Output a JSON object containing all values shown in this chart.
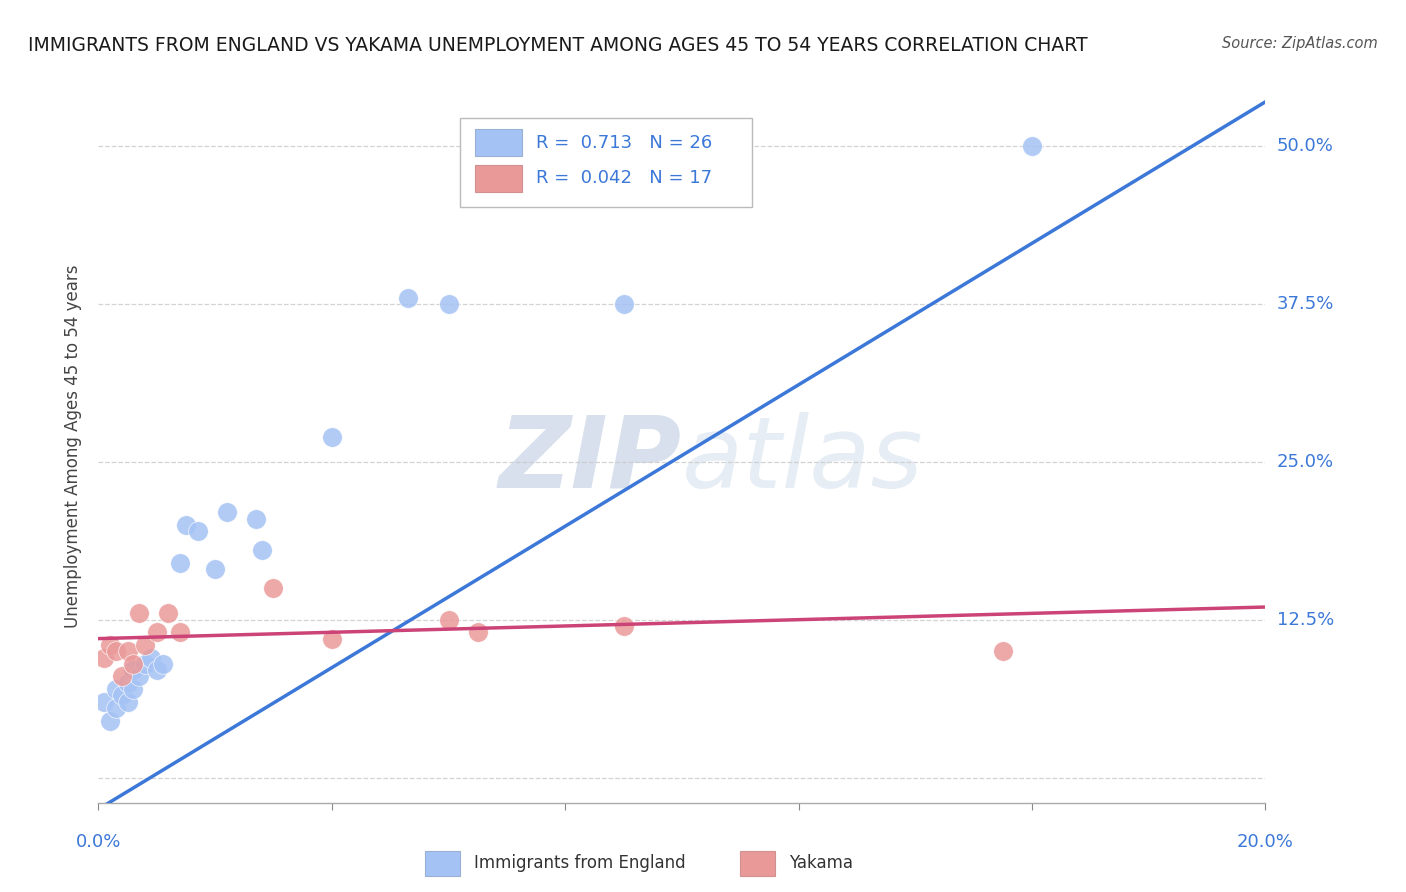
{
  "title": "IMMIGRANTS FROM ENGLAND VS YAKAMA UNEMPLOYMENT AMONG AGES 45 TO 54 YEARS CORRELATION CHART",
  "source": "Source: ZipAtlas.com",
  "ylabel": "Unemployment Among Ages 45 to 54 years",
  "xlim": [
    0.0,
    0.2
  ],
  "ylim": [
    -0.02,
    0.545
  ],
  "ytick_positions": [
    0.0,
    0.125,
    0.25,
    0.375,
    0.5
  ],
  "ytick_labels": [
    "",
    "12.5%",
    "25.0%",
    "37.5%",
    "50.0%"
  ],
  "background_color": "#ffffff",
  "grid_color": "#c8c8c8",
  "watermark": "ZIPatlas",
  "legend_R1": "0.713",
  "legend_N1": "26",
  "legend_R2": "0.042",
  "legend_N2": "17",
  "blue_color": "#a4c2f4",
  "pink_color": "#ea9999",
  "line_blue": "#3c78d8",
  "line_pink": "#cc4477",
  "blue_scatter_x": [
    0.001,
    0.002,
    0.003,
    0.003,
    0.004,
    0.005,
    0.005,
    0.006,
    0.006,
    0.007,
    0.008,
    0.009,
    0.01,
    0.011,
    0.014,
    0.015,
    0.017,
    0.02,
    0.022,
    0.027,
    0.028,
    0.04,
    0.053,
    0.06,
    0.09,
    0.16
  ],
  "blue_scatter_y": [
    0.06,
    0.045,
    0.055,
    0.07,
    0.065,
    0.06,
    0.075,
    0.07,
    0.085,
    0.08,
    0.09,
    0.095,
    0.085,
    0.09,
    0.17,
    0.2,
    0.195,
    0.165,
    0.21,
    0.205,
    0.18,
    0.27,
    0.38,
    0.375,
    0.375,
    0.5
  ],
  "pink_scatter_x": [
    0.001,
    0.002,
    0.003,
    0.004,
    0.005,
    0.006,
    0.007,
    0.008,
    0.01,
    0.012,
    0.014,
    0.03,
    0.04,
    0.06,
    0.065,
    0.09,
    0.155
  ],
  "pink_scatter_y": [
    0.095,
    0.105,
    0.1,
    0.08,
    0.1,
    0.09,
    0.13,
    0.105,
    0.115,
    0.13,
    0.115,
    0.15,
    0.11,
    0.125,
    0.115,
    0.12,
    0.1
  ],
  "blue_line_x0": 0.0,
  "blue_line_y0": -0.025,
  "blue_line_x1": 0.2,
  "blue_line_y1": 0.535,
  "pink_line_x0": 0.0,
  "pink_line_y0": 0.11,
  "pink_line_x1": 0.2,
  "pink_line_y1": 0.135
}
